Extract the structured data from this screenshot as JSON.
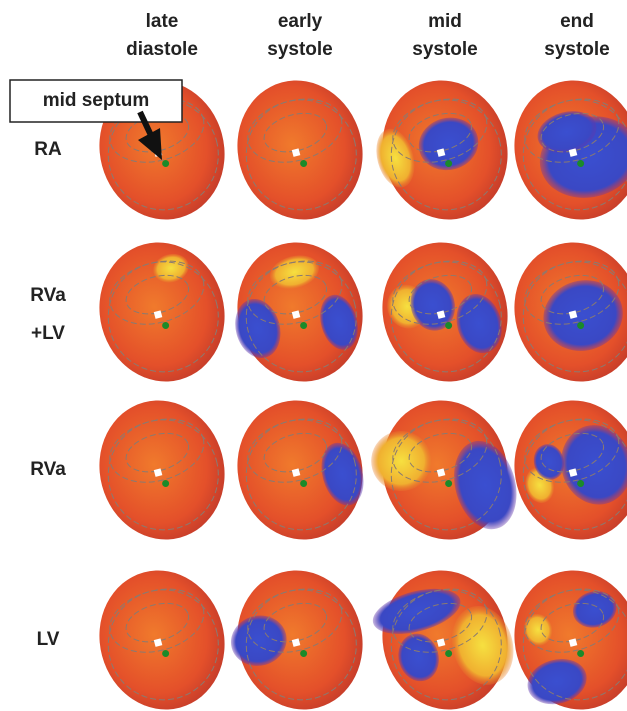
{
  "columns": [
    {
      "line1": "late",
      "line2": "diastole"
    },
    {
      "line1": "early",
      "line2": "systole"
    },
    {
      "line1": "mid",
      "line2": "systole"
    },
    {
      "line1": "end",
      "line2": "systole"
    }
  ],
  "rows": [
    {
      "line1": "RA"
    },
    {
      "line1": "RVa",
      "line2": "+LV"
    },
    {
      "line1": "RVa"
    },
    {
      "line1": "LV"
    }
  ],
  "annotation": "mid septum"
}
